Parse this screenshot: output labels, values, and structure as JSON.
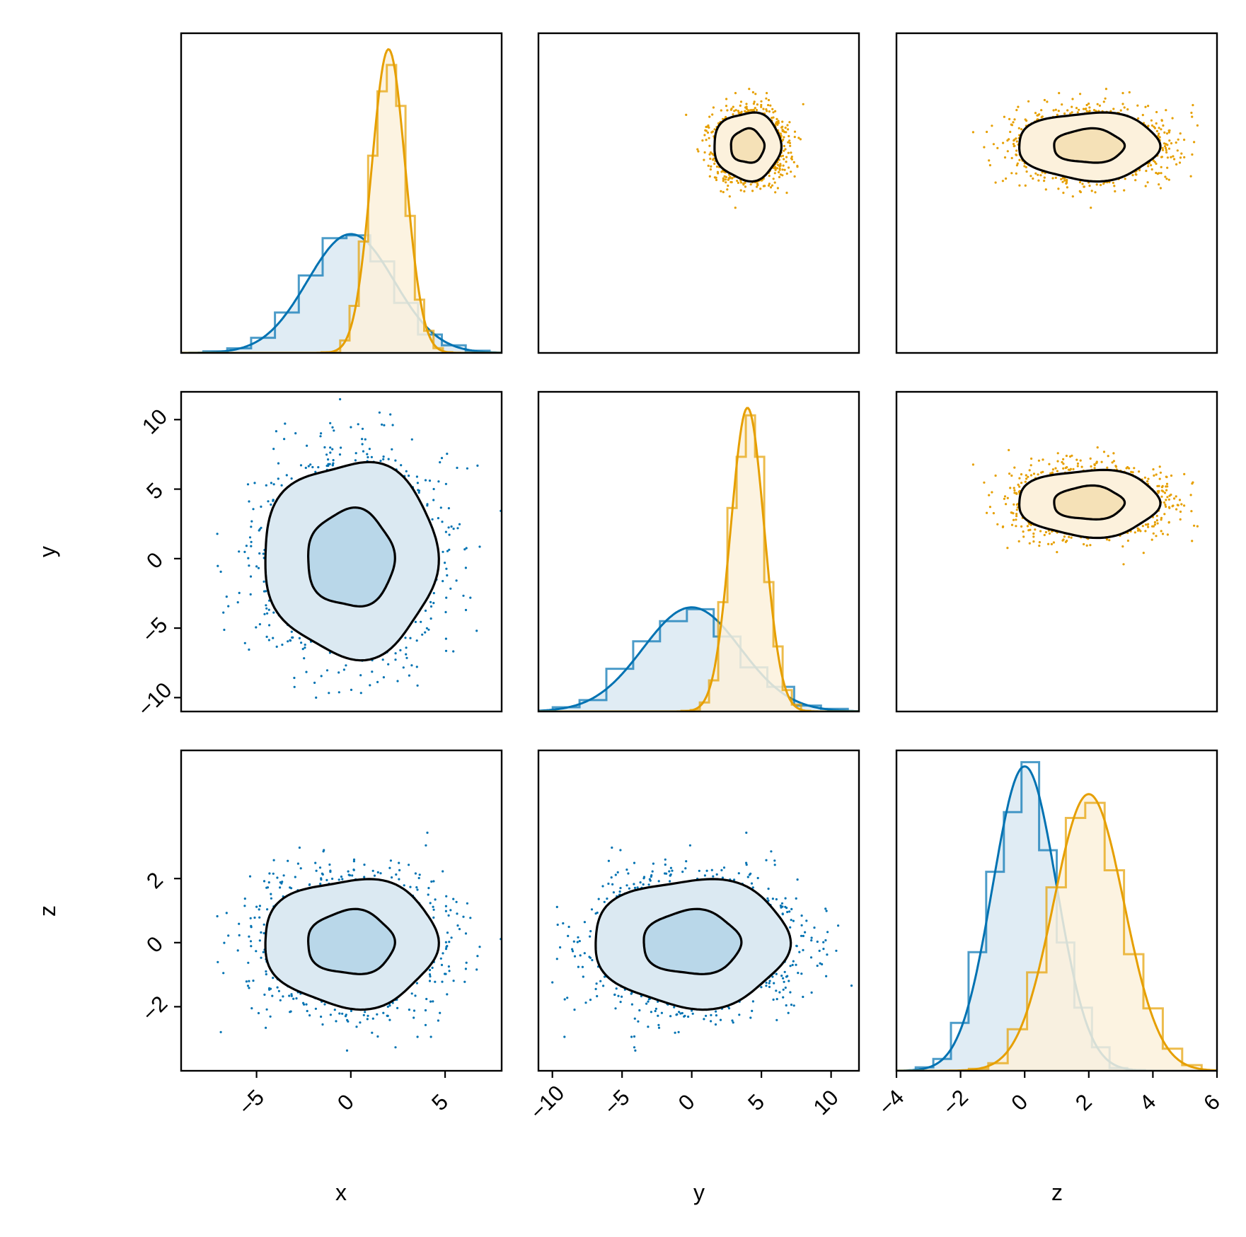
{
  "chart_data": {
    "type": "scatter",
    "layout": "corner-plot-3x3",
    "variables": [
      "x",
      "y",
      "z"
    ],
    "axis_labels": {
      "x": "x",
      "y": "y",
      "z": "z"
    },
    "limits": {
      "x": [
        -9.0,
        8.0
      ],
      "y": [
        -11.0,
        12.0
      ],
      "z": [
        -4.0,
        6.0
      ]
    },
    "ticks": {
      "x": {
        "values": [
          -5,
          0,
          5
        ],
        "labels": [
          "−5",
          "0",
          "5"
        ]
      },
      "y": {
        "values": [
          -10,
          -5,
          0,
          5,
          10
        ],
        "labels": [
          "−10",
          "−5",
          "0",
          "5",
          "10"
        ]
      },
      "z": {
        "values": [
          -4,
          -2,
          0,
          2,
          4,
          6
        ],
        "labels": [
          "−4",
          "−2",
          "0",
          "2",
          "4",
          "6"
        ]
      },
      "y_row": {
        "values": [
          -10,
          -5,
          0,
          5,
          10
        ],
        "labels": [
          "−10",
          "−5",
          "0",
          "5",
          "10"
        ]
      },
      "z_row": {
        "values": [
          -2,
          0,
          2
        ],
        "labels": [
          "−2",
          "0",
          "2"
        ]
      }
    },
    "colors": {
      "blue": "#0072b2",
      "blue_fill": "#dbe9f2",
      "blue_inner": "#b9d7e9",
      "orange": "#e69f00",
      "orange_fill": "#fcf1dc",
      "orange_inner": "#f5e1b7",
      "overlap": "#dddfcf",
      "contour": "#000000"
    },
    "series": [
      {
        "color": "blue",
        "mean": {
          "x": 0.0,
          "y": 0.0,
          "z": 0.0
        },
        "std": {
          "x": 2.3,
          "y": 3.5,
          "z": 1.0
        },
        "n_points": 2000
      },
      {
        "color": "orange",
        "mean": {
          "x": 2.0,
          "y": 4.0,
          "z": 2.0
        },
        "std": {
          "x": 0.9,
          "y": 1.2,
          "z": 1.1
        },
        "n_points": 2000
      }
    ],
    "panels": [
      {
        "row": 0,
        "col": 0,
        "kind": "hist",
        "var": "x",
        "series": [
          0,
          1
        ]
      },
      {
        "row": 0,
        "col": 1,
        "kind": "scatter",
        "xvar": "y",
        "yvar": "x",
        "series": [
          1
        ]
      },
      {
        "row": 0,
        "col": 2,
        "kind": "scatter",
        "xvar": "z",
        "yvar": "x",
        "series": [
          1
        ]
      },
      {
        "row": 1,
        "col": 0,
        "kind": "scatter",
        "xvar": "x",
        "yvar": "y",
        "series": [
          0
        ]
      },
      {
        "row": 1,
        "col": 1,
        "kind": "hist",
        "var": "y",
        "series": [
          0,
          1
        ]
      },
      {
        "row": 1,
        "col": 2,
        "kind": "scatter",
        "xvar": "z",
        "yvar": "y",
        "series": [
          1
        ]
      },
      {
        "row": 2,
        "col": 0,
        "kind": "scatter",
        "xvar": "x",
        "yvar": "z",
        "series": [
          0
        ]
      },
      {
        "row": 2,
        "col": 1,
        "kind": "scatter",
        "xvar": "y",
        "yvar": "z",
        "series": [
          0
        ]
      },
      {
        "row": 2,
        "col": 2,
        "kind": "hist",
        "var": "z",
        "series": [
          0,
          1
        ]
      }
    ],
    "contour_levels_sigma": [
      1.0,
      2.0
    ],
    "grid": false,
    "legend": "none"
  }
}
